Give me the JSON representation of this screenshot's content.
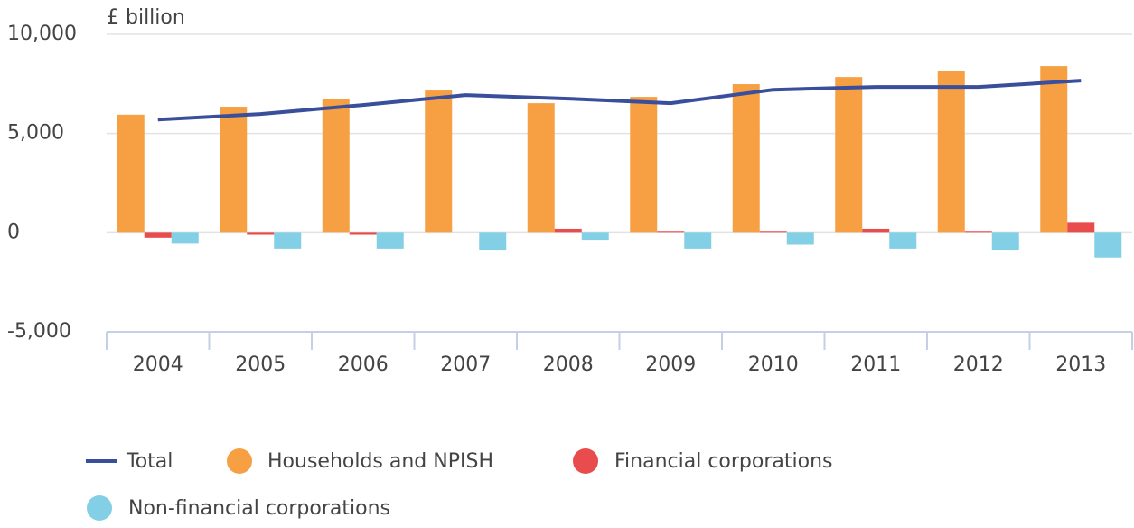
{
  "chart_data": {
    "type": "bar_line",
    "y_axis_label": "£ billion",
    "categories": [
      "2004",
      "2005",
      "2006",
      "2007",
      "2008",
      "2009",
      "2010",
      "2011",
      "2012",
      "2013"
    ],
    "series": [
      {
        "name": "Total",
        "type": "line",
        "color": "#3a4f9b",
        "values": [
          5700,
          5980,
          6440,
          6940,
          6760,
          6530,
          7210,
          7350,
          7350,
          7670
        ]
      },
      {
        "name": "Households and NPISH",
        "type": "bar",
        "color": "#f6a043",
        "values": [
          5950,
          6350,
          6760,
          7170,
          6530,
          6850,
          7490,
          7850,
          8170,
          8400
        ]
      },
      {
        "name": "Financial corporations",
        "type": "bar",
        "color": "#e84c4c",
        "values": [
          -250,
          -100,
          -100,
          0,
          200,
          50,
          50,
          200,
          50,
          500
        ]
      },
      {
        "name": "Non-financial corporations",
        "type": "bar",
        "color": "#82cfe6",
        "values": [
          -550,
          -800,
          -800,
          -900,
          -400,
          -800,
          -600,
          -800,
          -900,
          -1250
        ]
      }
    ],
    "ylim": [
      -5000,
      10000
    ],
    "yticks": [
      {
        "value": -5000,
        "label": "-5,000"
      },
      0,
      {
        "value": 5000,
        "label": "5,000"
      },
      {
        "value": 10000,
        "label": "10,000"
      }
    ],
    "grid": true
  }
}
